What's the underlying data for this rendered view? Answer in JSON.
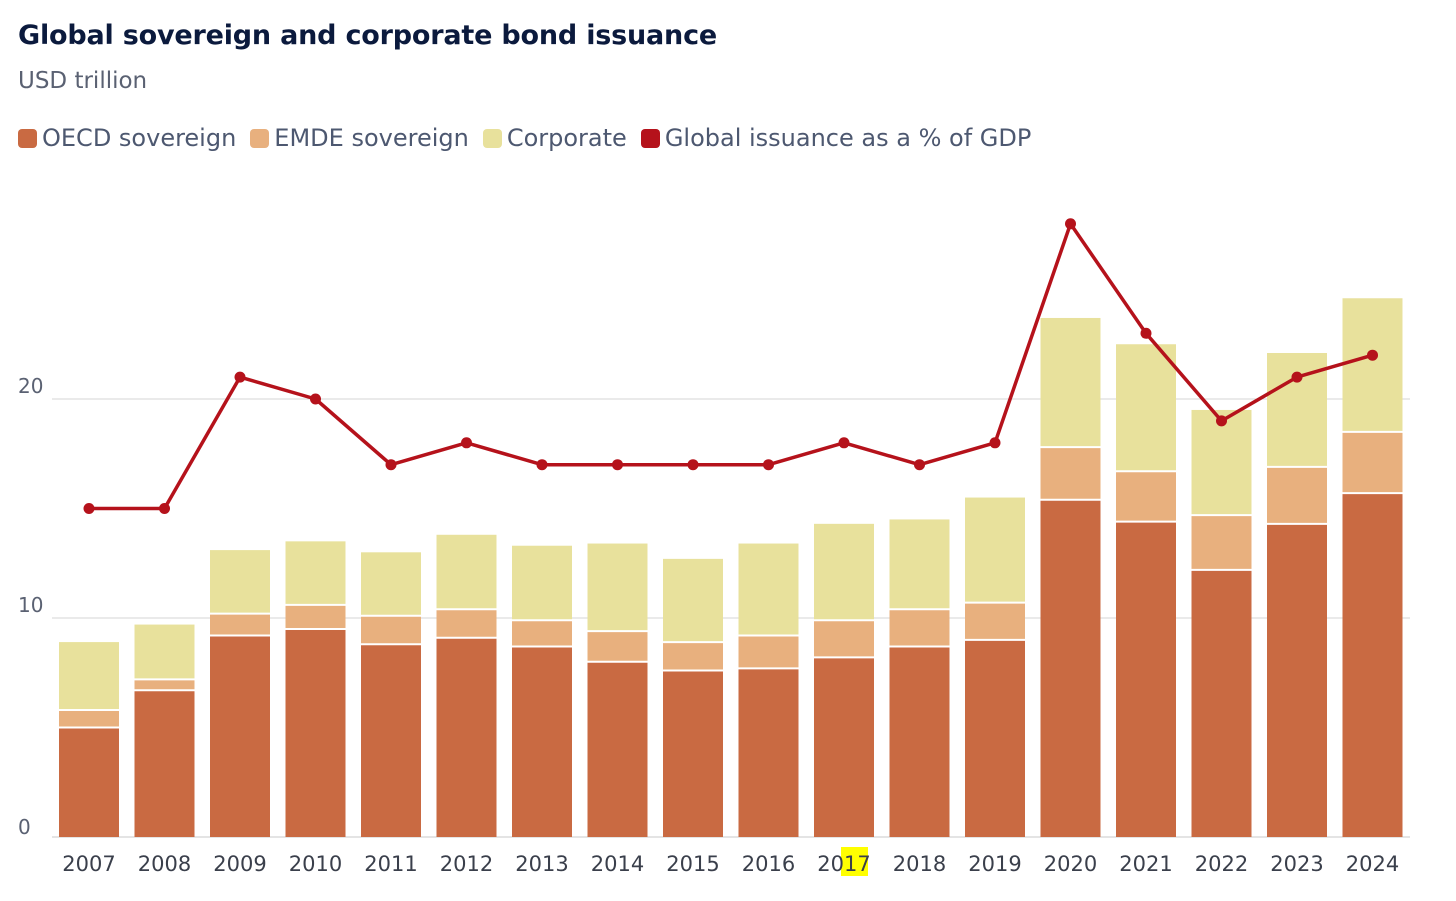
{
  "chart_data": {
    "type": "bar",
    "title": "Global sovereign and corporate bond issuance",
    "subtitle": "USD trillion",
    "categories": [
      "2007",
      "2008",
      "2009",
      "2010",
      "2011",
      "2012",
      "2013",
      "2014",
      "2015",
      "2016",
      "2017",
      "2018",
      "2019",
      "2020",
      "2021",
      "2022",
      "2023",
      "2024"
    ],
    "highlighted_category_text": {
      "category": "2017",
      "highlight": "17",
      "color": "#ffff00"
    },
    "stacked": true,
    "series": [
      {
        "name": "OECD sovereign",
        "type": "bar",
        "color": "#c96a42",
        "values": [
          5.0,
          6.7,
          9.2,
          9.5,
          8.8,
          9.1,
          8.7,
          8.0,
          7.6,
          7.7,
          8.2,
          8.7,
          9.0,
          15.4,
          14.4,
          12.2,
          14.3,
          15.7
        ]
      },
      {
        "name": "EMDE sovereign",
        "type": "bar",
        "color": "#e8b07e",
        "values": [
          0.8,
          0.5,
          1.0,
          1.1,
          1.3,
          1.3,
          1.2,
          1.4,
          1.3,
          1.5,
          1.7,
          1.7,
          1.7,
          2.4,
          2.3,
          2.5,
          2.6,
          2.8
        ]
      },
      {
        "name": "Corporate",
        "type": "bar",
        "color": "#e8e19c",
        "values": [
          3.1,
          2.5,
          2.9,
          2.9,
          2.9,
          3.4,
          3.4,
          4.0,
          3.8,
          4.2,
          4.4,
          4.1,
          4.8,
          5.9,
          5.8,
          4.8,
          5.2,
          6.1
        ]
      },
      {
        "name": "Global issuance as a % of GDP",
        "type": "line",
        "color": "#b5121b",
        "values": [
          15,
          15,
          21,
          20,
          17,
          18,
          17,
          17,
          17,
          17,
          18,
          17,
          18,
          28,
          23,
          19,
          21,
          22
        ]
      }
    ],
    "y_axis": {
      "ticks": [
        0,
        10,
        20
      ],
      "range": [
        0,
        30
      ]
    },
    "grid": true,
    "legend_position": "top-left"
  }
}
